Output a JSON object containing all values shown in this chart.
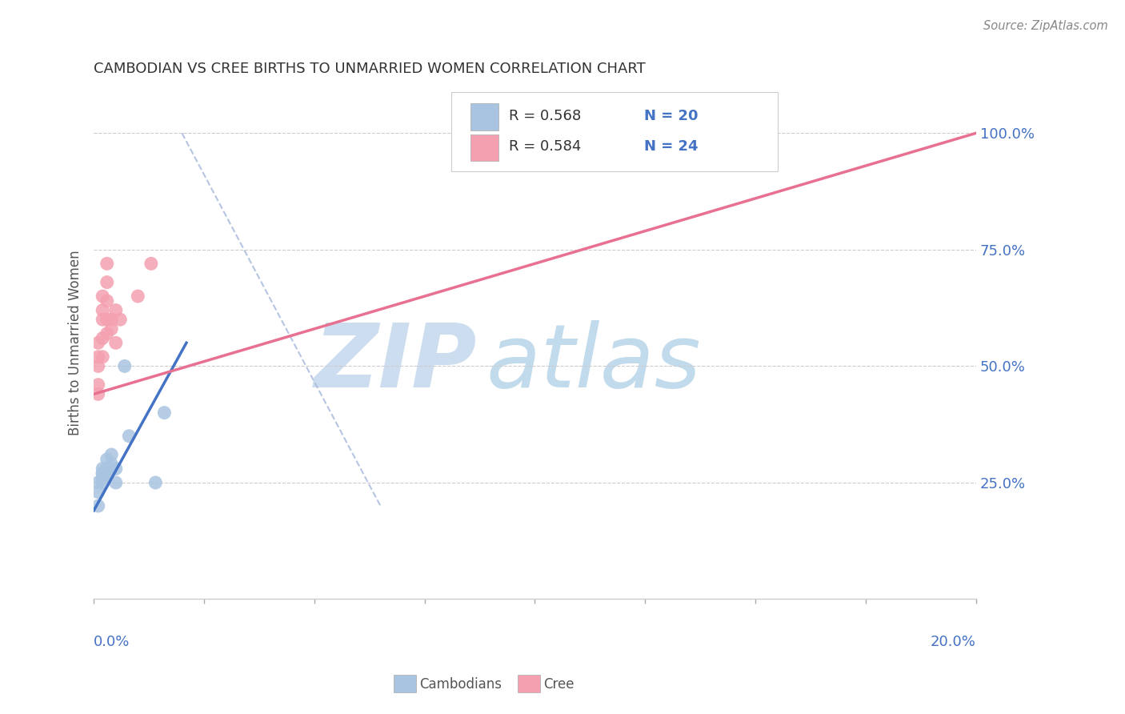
{
  "title": "CAMBODIAN VS CREE BIRTHS TO UNMARRIED WOMEN CORRELATION CHART",
  "source": "Source: ZipAtlas.com",
  "ylabel": "Births to Unmarried Women",
  "axis_color": "#4472c4",
  "watermark_zip": "ZIP",
  "watermark_atlas": "atlas",
  "legend_r1": "R = 0.568",
  "legend_n1": "N = 20",
  "legend_r2": "R = 0.584",
  "legend_n2": "N = 24",
  "legend_label1": "Cambodians",
  "legend_label2": "Cree",
  "cambodian_color": "#a8c4e0",
  "cree_color": "#f4a0b0",
  "cambodian_line_color": "#4472c4",
  "cree_line_color": "#e87090",
  "diagonal_line_color": "#aabbdd",
  "cambodian_x": [
    0.001,
    0.001,
    0.001,
    0.002,
    0.002,
    0.002,
    0.002,
    0.002,
    0.003,
    0.003,
    0.003,
    0.003,
    0.004,
    0.004,
    0.005,
    0.005,
    0.007,
    0.008,
    0.014,
    0.016
  ],
  "cambodian_y": [
    0.2,
    0.23,
    0.25,
    0.25,
    0.26,
    0.27,
    0.27,
    0.28,
    0.27,
    0.27,
    0.28,
    0.3,
    0.29,
    0.31,
    0.25,
    0.28,
    0.5,
    0.35,
    0.25,
    0.4
  ],
  "cree_x": [
    0.001,
    0.001,
    0.001,
    0.001,
    0.002,
    0.002,
    0.002,
    0.002,
    0.003,
    0.003,
    0.003,
    0.004,
    0.004,
    0.005,
    0.005,
    0.006,
    0.01,
    0.013,
    0.13,
    0.15,
    0.001,
    0.002,
    0.003,
    0.003
  ],
  "cree_y": [
    0.44,
    0.46,
    0.5,
    0.52,
    0.56,
    0.6,
    0.62,
    0.65,
    0.57,
    0.6,
    0.64,
    0.6,
    0.58,
    0.55,
    0.62,
    0.6,
    0.65,
    0.72,
    1.0,
    1.0,
    0.55,
    0.52,
    0.68,
    0.72
  ],
  "xlim": [
    0.0,
    0.2
  ],
  "ylim": [
    0.0,
    1.1
  ],
  "cam_line_x": [
    0.0,
    0.021
  ],
  "cam_line_y": [
    0.19,
    0.55
  ],
  "cree_line_x": [
    0.0,
    0.2
  ],
  "cree_line_y": [
    0.44,
    1.0
  ],
  "diag_line_x": [
    0.02,
    0.065
  ],
  "diag_line_y": [
    1.0,
    0.2
  ]
}
